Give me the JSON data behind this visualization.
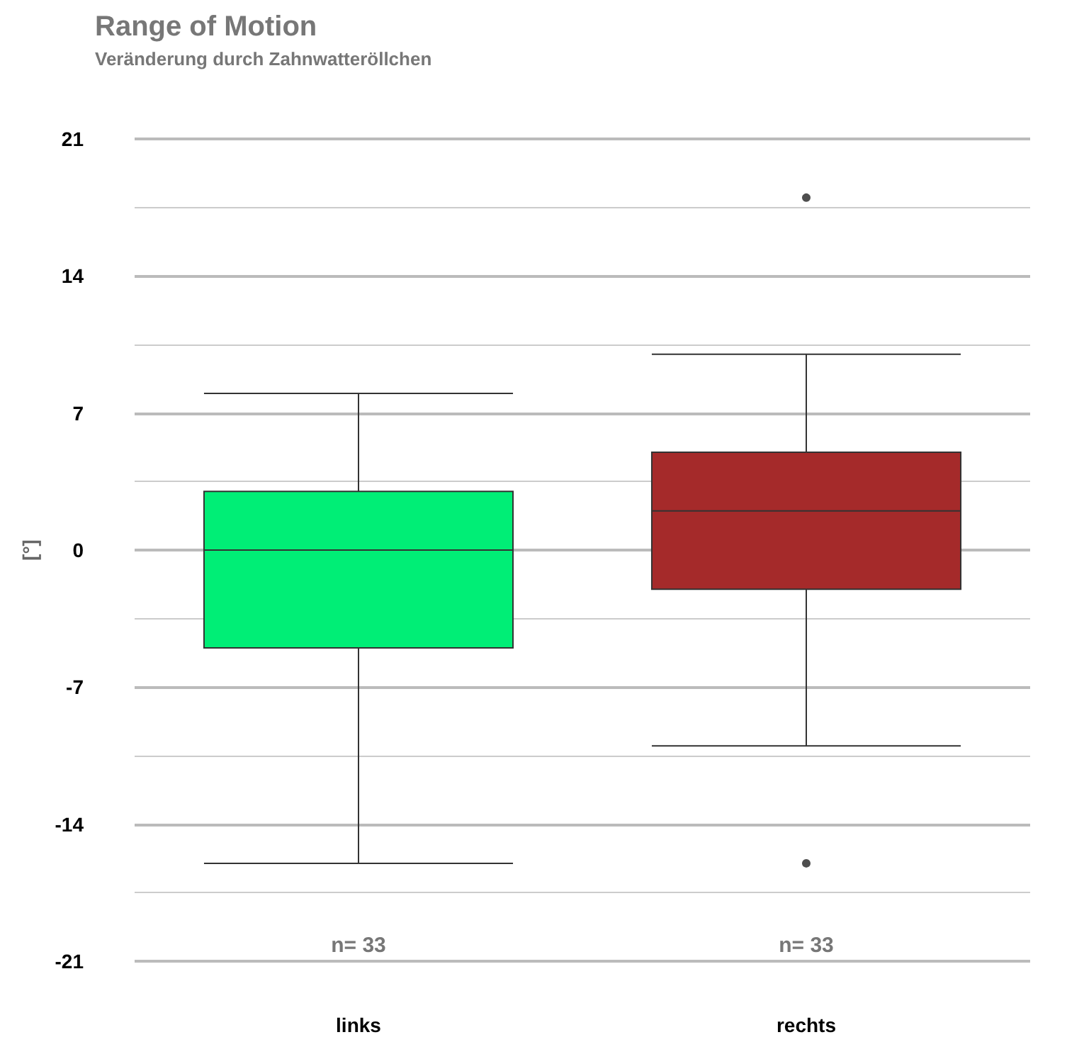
{
  "chart_data": {
    "type": "box",
    "title": "Range of Motion",
    "subtitle": "Veränderung durch Zahnwatteröllchen",
    "ylabel": "[°]",
    "categories": [
      "links",
      "rechts"
    ],
    "series": [
      {
        "colors": [
          "#00ee76",
          "#a52a2a"
        ],
        "boxes": [
          {
            "low": -16,
            "q1": -5,
            "median": 0,
            "q3": 3,
            "high": 8
          },
          {
            "low": -10,
            "q1": -2,
            "median": 2,
            "q3": 5,
            "high": 10,
            "outliers": [
              18,
              -16
            ]
          }
        ]
      }
    ],
    "ylim": [
      -21,
      21
    ],
    "yticks": [
      -21,
      -14,
      -7,
      0,
      7,
      14,
      21
    ],
    "grid": "y",
    "annotations": [
      "n= 33",
      "n= 33"
    ]
  }
}
